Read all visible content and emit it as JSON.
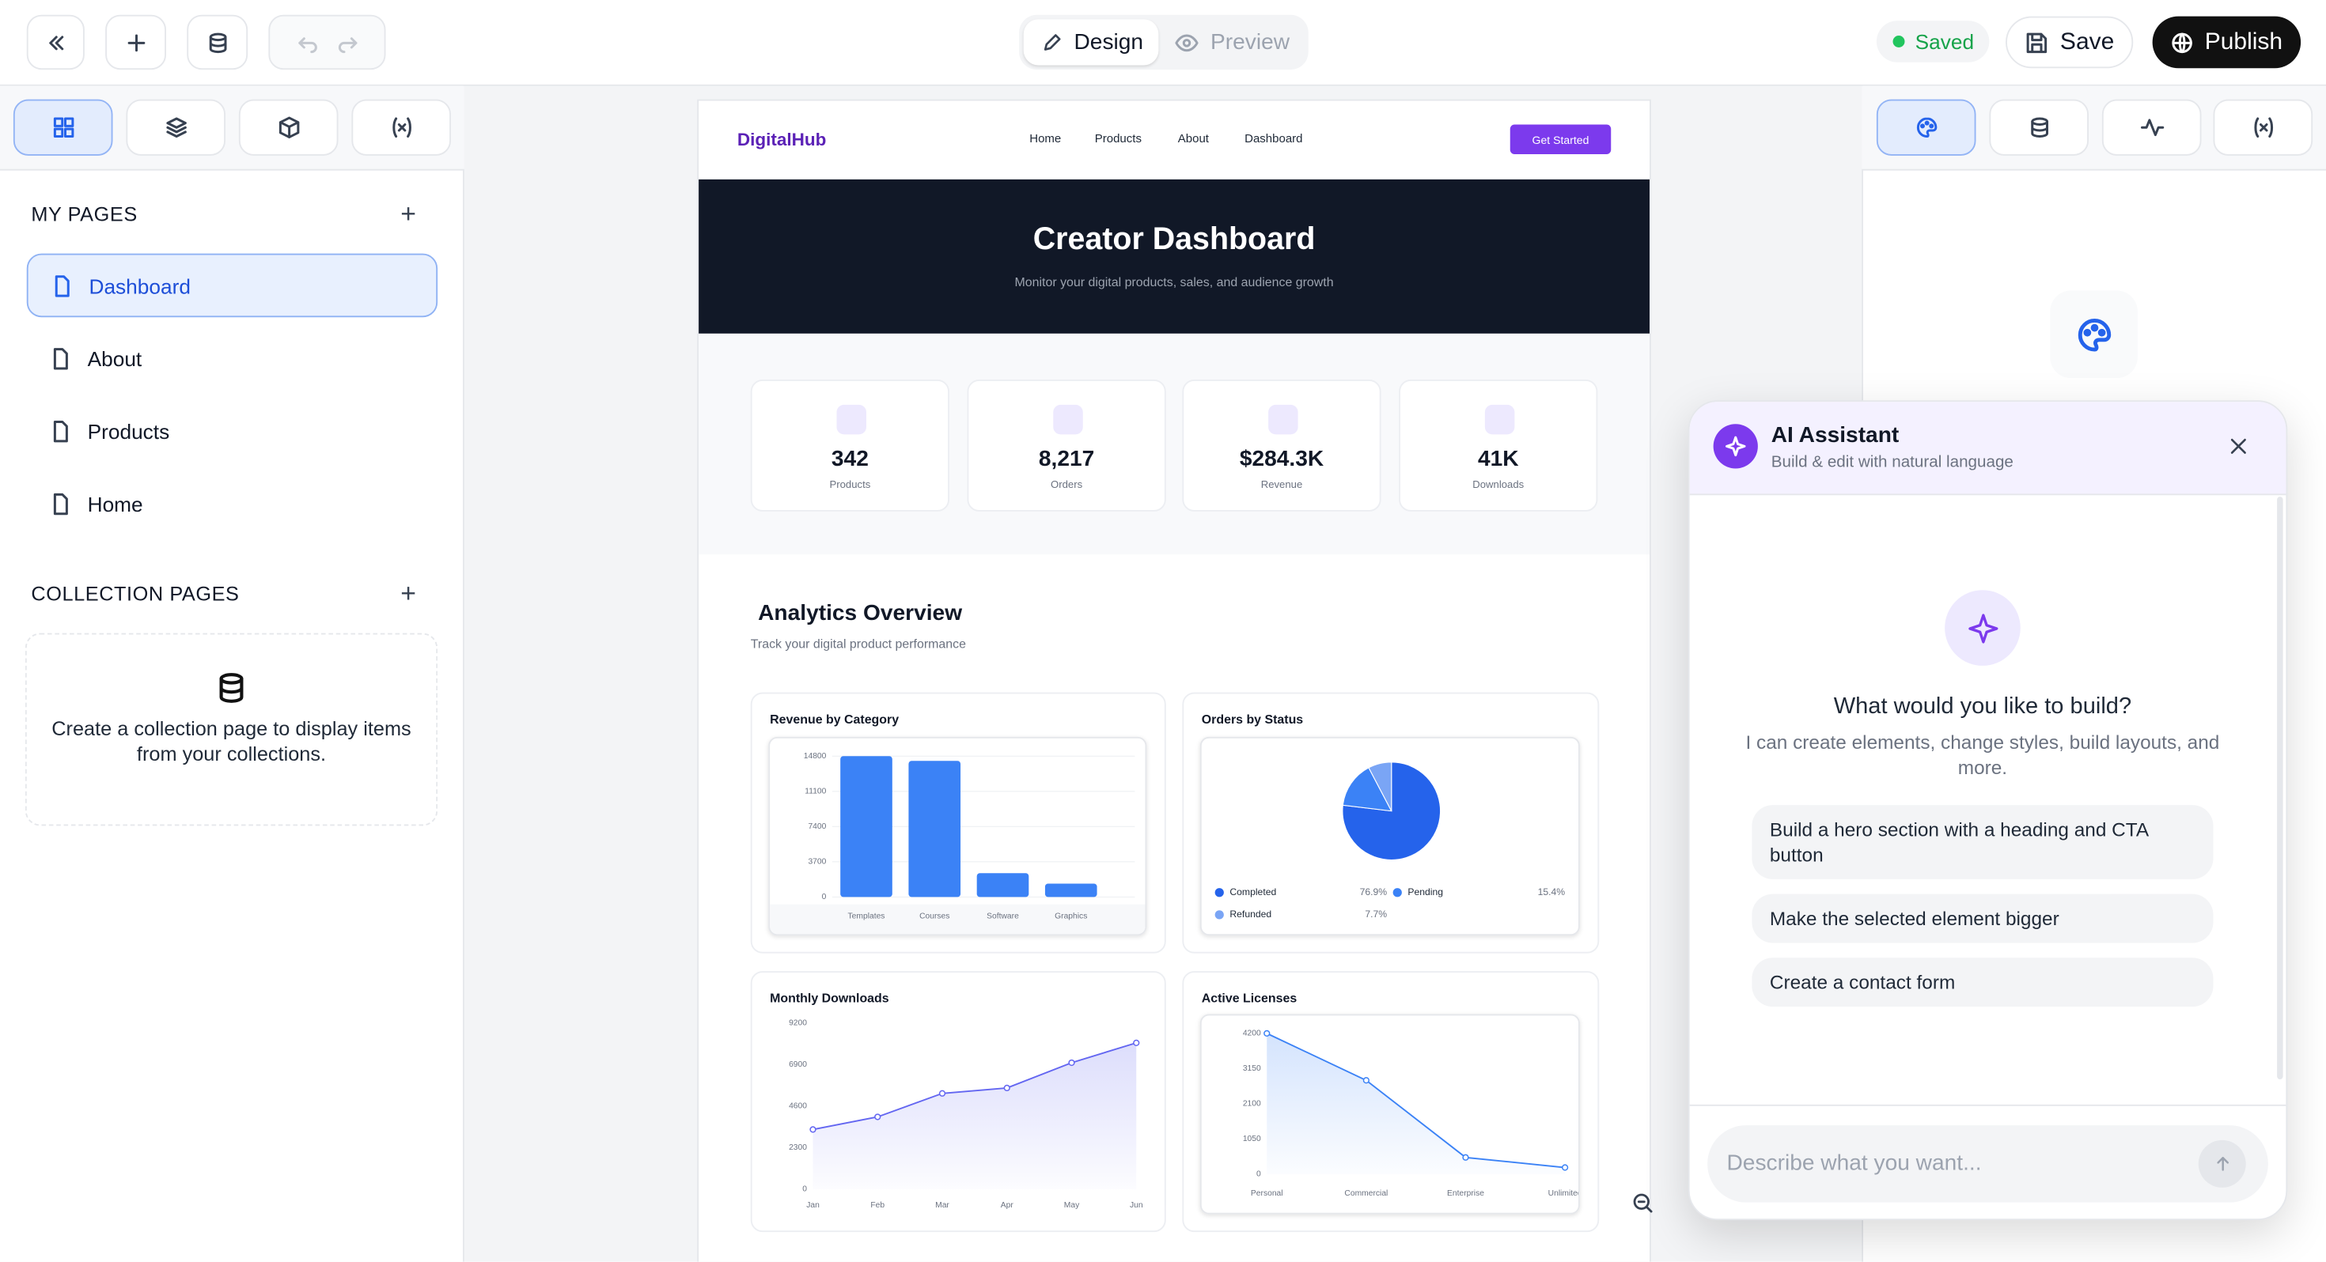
{
  "toolbar": {
    "modes": [
      "Design",
      "Preview"
    ],
    "status": "Saved",
    "save": "Save",
    "publish": "Publish"
  },
  "sidebar": {
    "my_pages_title": "MY PAGES",
    "pages": [
      "Dashboard",
      "About",
      "Products",
      "Home"
    ],
    "collection_title": "COLLECTION PAGES",
    "collection_empty": "Create a collection page to display items from your collections."
  },
  "site": {
    "brand": "DigitalHub",
    "nav": [
      "Home",
      "Products",
      "About",
      "Dashboard"
    ],
    "cta": "Get Started",
    "hero_title": "Creator Dashboard",
    "hero_subtitle": "Monitor your digital products, sales, and audience growth",
    "stats": [
      {
        "value": "342",
        "label": "Products"
      },
      {
        "value": "8,217",
        "label": "Orders"
      },
      {
        "value": "$284.3K",
        "label": "Revenue"
      },
      {
        "value": "41K",
        "label": "Downloads"
      }
    ],
    "analytics_title": "Analytics Overview",
    "analytics_subtitle": "Track your digital product performance",
    "charts": [
      {
        "type": "bar",
        "title": "Revenue by Category",
        "categories": [
          "Templates",
          "Courses",
          "Software",
          "Graphics"
        ],
        "values": [
          14800,
          14300,
          2500,
          1400
        ],
        "ylim": [
          0,
          14800
        ],
        "yticks": [
          0,
          3700,
          7400,
          11100,
          14800
        ],
        "color": "#3b82f6",
        "grid": true
      },
      {
        "type": "pie",
        "title": "Orders by Status",
        "categories": [
          "Completed",
          "Pending",
          "Refunded"
        ],
        "values": [
          76.9,
          15.4,
          7.7
        ],
        "value_labels": [
          "76.9%",
          "15.4%",
          "7.7%"
        ],
        "colors": [
          "#2563eb",
          "#3b82f6",
          "#7aa5f5"
        ]
      },
      {
        "type": "line",
        "title": "Monthly Downloads",
        "categories": [
          "Jan",
          "Feb",
          "Mar",
          "Apr",
          "May",
          "Jun"
        ],
        "values": [
          3300,
          4000,
          5300,
          5600,
          7000,
          8100
        ],
        "ylim": [
          0,
          9200
        ],
        "yticks": [
          0,
          2300,
          4600,
          6900,
          9200
        ],
        "color": "#6366f1"
      },
      {
        "type": "line",
        "title": "Active Licenses",
        "categories": [
          "Personal",
          "Commercial",
          "Enterprise",
          "Unlimited"
        ],
        "values": [
          4200,
          2800,
          500,
          200
        ],
        "ylim": [
          0,
          4200
        ],
        "yticks": [
          0,
          1050,
          2100,
          3150,
          4200
        ],
        "color": "#3b82f6"
      }
    ]
  },
  "assistant": {
    "title": "AI Assistant",
    "subtitle": "Build & edit with natural language",
    "prompt_title": "What would you like to build?",
    "prompt_text": "I can create elements, change styles, build layouts, and more.",
    "suggestions": [
      "Build a hero section with a heading and CTA button",
      "Make the selected element bigger",
      "Create a contact form"
    ],
    "input_placeholder": "Describe what you want..."
  }
}
